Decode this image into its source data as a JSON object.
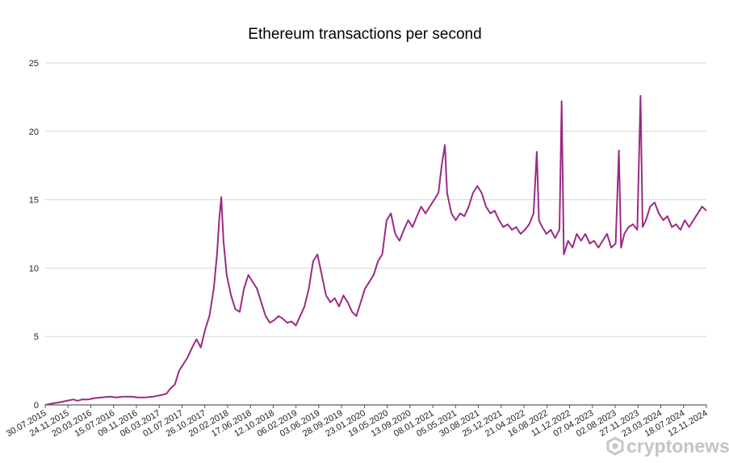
{
  "chart_data": {
    "type": "line",
    "title": "Ethereum transactions per second",
    "xlabel": "",
    "ylabel": "",
    "ylim": [
      0,
      25
    ],
    "y_ticks": [
      0,
      5,
      10,
      15,
      20,
      25
    ],
    "grid": true,
    "legend": "none",
    "x_tick_labels": [
      "30.07.2015",
      "24.11.2015",
      "20.03.2016",
      "15.07.2016",
      "09.11.2016",
      "06.03.2017",
      "01.07.2017",
      "26.10.2017",
      "20.02.2018",
      "17.06.2018",
      "12.10.2018",
      "06.02.2019",
      "03.06.2019",
      "28.09.2019",
      "23.01.2020",
      "19.05.2020",
      "13.09.2020",
      "08.01.2021",
      "05.05.2021",
      "30.08.2021",
      "25.12.2021",
      "21.04.2022",
      "16.08.2022",
      "11.12.2022",
      "07.04.2023",
      "02.08.2023",
      "27.11.2023",
      "23.03.2024",
      "18.07.2024",
      "12.11.2024"
    ],
    "series": [
      {
        "name": "Ethereum transactions per second",
        "color": "#9c2a83",
        "points": [
          [
            0,
            0.0
          ],
          [
            0.3,
            0.1
          ],
          [
            0.7,
            0.2
          ],
          [
            1.0,
            0.3
          ],
          [
            1.3,
            0.4
          ],
          [
            1.5,
            0.3
          ],
          [
            1.7,
            0.4
          ],
          [
            2.0,
            0.4
          ],
          [
            2.3,
            0.5
          ],
          [
            2.6,
            0.55
          ],
          [
            3.0,
            0.6
          ],
          [
            3.3,
            0.55
          ],
          [
            3.6,
            0.6
          ],
          [
            4.0,
            0.6
          ],
          [
            4.3,
            0.55
          ],
          [
            4.6,
            0.55
          ],
          [
            5.0,
            0.6
          ],
          [
            5.3,
            0.7
          ],
          [
            5.6,
            0.8
          ],
          [
            5.8,
            1.2
          ],
          [
            6.0,
            1.5
          ],
          [
            6.2,
            2.5
          ],
          [
            6.4,
            3.0
          ],
          [
            6.6,
            3.5
          ],
          [
            6.8,
            4.2
          ],
          [
            7.0,
            4.8
          ],
          [
            7.2,
            4.2
          ],
          [
            7.4,
            5.5
          ],
          [
            7.6,
            6.5
          ],
          [
            7.8,
            8.5
          ],
          [
            7.95,
            11.0
          ],
          [
            8.05,
            13.5
          ],
          [
            8.15,
            15.2
          ],
          [
            8.25,
            12.0
          ],
          [
            8.4,
            9.5
          ],
          [
            8.6,
            8.0
          ],
          [
            8.8,
            7.0
          ],
          [
            9.0,
            6.8
          ],
          [
            9.2,
            8.5
          ],
          [
            9.4,
            9.5
          ],
          [
            9.6,
            9.0
          ],
          [
            9.8,
            8.5
          ],
          [
            10.0,
            7.5
          ],
          [
            10.2,
            6.5
          ],
          [
            10.4,
            6.0
          ],
          [
            10.6,
            6.2
          ],
          [
            10.8,
            6.5
          ],
          [
            11.0,
            6.3
          ],
          [
            11.2,
            6.0
          ],
          [
            11.4,
            6.1
          ],
          [
            11.6,
            5.8
          ],
          [
            11.8,
            6.5
          ],
          [
            12.0,
            7.2
          ],
          [
            12.2,
            8.5
          ],
          [
            12.4,
            10.5
          ],
          [
            12.6,
            11.0
          ],
          [
            12.8,
            9.5
          ],
          [
            13.0,
            8.0
          ],
          [
            13.2,
            7.5
          ],
          [
            13.4,
            7.8
          ],
          [
            13.6,
            7.2
          ],
          [
            13.8,
            8.0
          ],
          [
            14.0,
            7.5
          ],
          [
            14.2,
            6.8
          ],
          [
            14.4,
            6.5
          ],
          [
            14.6,
            7.5
          ],
          [
            14.8,
            8.5
          ],
          [
            15.0,
            9.0
          ],
          [
            15.2,
            9.5
          ],
          [
            15.4,
            10.5
          ],
          [
            15.6,
            11.0
          ],
          [
            15.8,
            13.5
          ],
          [
            16.0,
            14.0
          ],
          [
            16.2,
            12.5
          ],
          [
            16.4,
            12.0
          ],
          [
            16.6,
            12.8
          ],
          [
            16.8,
            13.5
          ],
          [
            17.0,
            13.0
          ],
          [
            17.2,
            13.8
          ],
          [
            17.4,
            14.5
          ],
          [
            17.6,
            14.0
          ],
          [
            17.8,
            14.5
          ],
          [
            18.0,
            15.0
          ],
          [
            18.2,
            15.5
          ],
          [
            18.35,
            17.5
          ],
          [
            18.5,
            19.0
          ],
          [
            18.6,
            15.5
          ],
          [
            18.8,
            14.0
          ],
          [
            19.0,
            13.5
          ],
          [
            19.2,
            14.0
          ],
          [
            19.4,
            13.8
          ],
          [
            19.6,
            14.5
          ],
          [
            19.8,
            15.5
          ],
          [
            20.0,
            16.0
          ],
          [
            20.2,
            15.5
          ],
          [
            20.4,
            14.5
          ],
          [
            20.6,
            14.0
          ],
          [
            20.8,
            14.2
          ],
          [
            21.0,
            13.5
          ],
          [
            21.2,
            13.0
          ],
          [
            21.4,
            13.2
          ],
          [
            21.6,
            12.8
          ],
          [
            21.8,
            13.0
          ],
          [
            22.0,
            12.5
          ],
          [
            22.2,
            12.8
          ],
          [
            22.4,
            13.2
          ],
          [
            22.6,
            14.0
          ],
          [
            22.75,
            18.5
          ],
          [
            22.85,
            13.5
          ],
          [
            23.0,
            13.0
          ],
          [
            23.2,
            12.5
          ],
          [
            23.4,
            12.8
          ],
          [
            23.6,
            12.2
          ],
          [
            23.8,
            12.8
          ],
          [
            23.9,
            22.2
          ],
          [
            24.0,
            11.0
          ],
          [
            24.2,
            12.0
          ],
          [
            24.4,
            11.5
          ],
          [
            24.6,
            12.5
          ],
          [
            24.8,
            12.0
          ],
          [
            25.0,
            12.5
          ],
          [
            25.2,
            11.8
          ],
          [
            25.4,
            12.0
          ],
          [
            25.6,
            11.5
          ],
          [
            25.8,
            12.0
          ],
          [
            26.0,
            12.5
          ],
          [
            26.2,
            11.5
          ],
          [
            26.4,
            11.8
          ],
          [
            26.55,
            18.6
          ],
          [
            26.65,
            11.5
          ],
          [
            26.8,
            12.5
          ],
          [
            27.0,
            13.0
          ],
          [
            27.2,
            13.2
          ],
          [
            27.4,
            12.8
          ],
          [
            27.55,
            22.6
          ],
          [
            27.65,
            13.0
          ],
          [
            27.8,
            13.5
          ],
          [
            28.0,
            14.5
          ],
          [
            28.2,
            14.8
          ],
          [
            28.4,
            14.0
          ],
          [
            28.6,
            13.5
          ],
          [
            28.8,
            13.8
          ],
          [
            29.0,
            13.0
          ],
          [
            29.2,
            13.2
          ],
          [
            29.4,
            12.8
          ],
          [
            29.6,
            13.5
          ],
          [
            29.8,
            13.0
          ],
          [
            30.0,
            13.5
          ],
          [
            30.2,
            14.0
          ],
          [
            30.4,
            14.5
          ],
          [
            30.6,
            14.2
          ]
        ]
      }
    ]
  },
  "watermark": {
    "text": "cryptonews",
    "icon": "cryptonews-logo-icon"
  }
}
